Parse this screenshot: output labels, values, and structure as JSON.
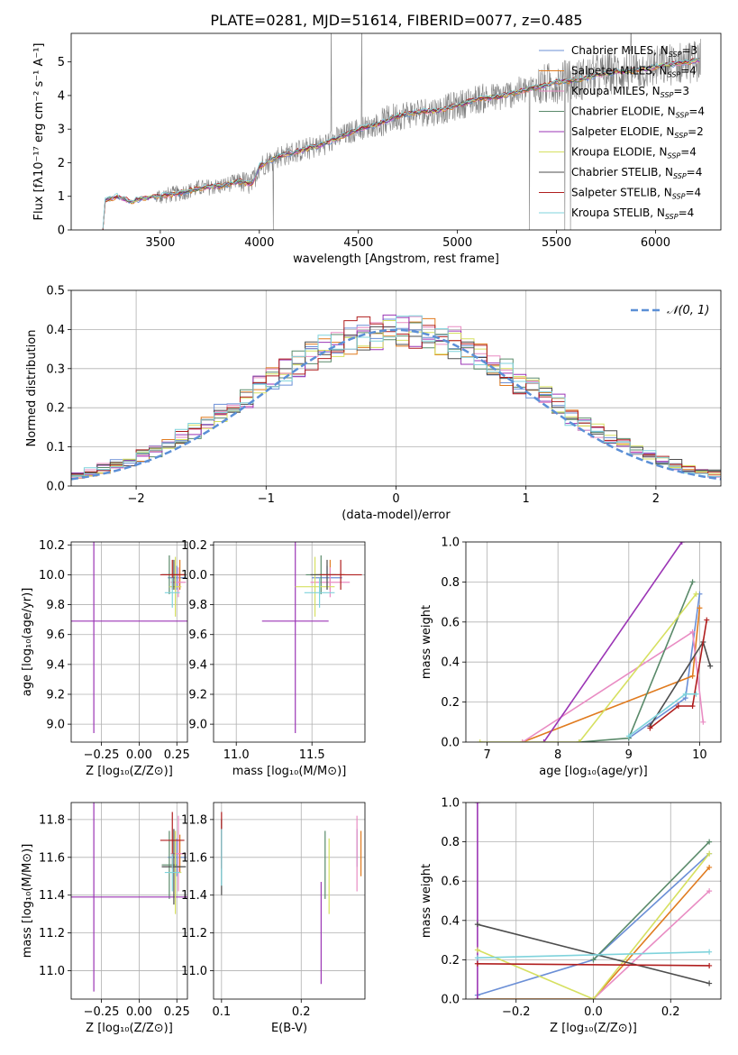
{
  "figure": {
    "title": "PLATE=0281, MJD=51614, FIBERID=0077, z=0.485"
  },
  "colors": {
    "Chabrier MILES": "#6b8fd6",
    "Salpeter MILES": "#e07b1f",
    "Kroupa MILES": "#e98cc3",
    "Chabrier ELODIE": "#5a8a6a",
    "Salpeter ELODIE": "#9b35b5",
    "Kroupa ELODIE": "#d6e060",
    "Chabrier STELIB": "#4d4d4d",
    "Salpeter STELIB": "#b01e1e",
    "Kroupa STELIB": "#7fd3dc",
    "data": "#808080",
    "normal": "#5b8fd6"
  },
  "chart_data": [
    {
      "id": "spectrum",
      "type": "line",
      "xlabel": "wavelength [Angstrom, rest frame]",
      "ylabel": "Flux [fλ10⁻¹⁷ erg cm⁻² s⁻¹ A⁻¹]",
      "xlim": [
        3050,
        6330
      ],
      "ylim": [
        0,
        5.85
      ],
      "xticks": [
        3500,
        4000,
        4500,
        5000,
        5500,
        6000
      ],
      "yticks": [
        0,
        1,
        2,
        3,
        4,
        5
      ],
      "legend": [
        {
          "label": "Chabrier MILES, N",
          "sub": "SSP",
          "suffix": "=3"
        },
        {
          "label": "Salpeter MILES, N",
          "sub": "SSP",
          "suffix": "=4"
        },
        {
          "label": "Kroupa MILES, N",
          "sub": "SSP",
          "suffix": "=3"
        },
        {
          "label": "Chabrier ELODIE, N",
          "sub": "SSP",
          "suffix": "=4"
        },
        {
          "label": "Salpeter ELODIE, N",
          "sub": "SSP",
          "suffix": "=2"
        },
        {
          "label": "Kroupa ELODIE, N",
          "sub": "SSP",
          "suffix": "=4"
        },
        {
          "label": "Chabrier STELIB, N",
          "sub": "SSP",
          "suffix": "=4"
        },
        {
          "label": "Salpeter STELIB, N",
          "sub": "SSP",
          "suffix": "=4"
        },
        {
          "label": "Kroupa STELIB, N",
          "sub": "SSP",
          "suffix": "=4"
        }
      ],
      "legend_placement": "upper-right",
      "data_range": [
        3210,
        6230
      ],
      "model_continuum": [
        [
          3210,
          0.0
        ],
        [
          3220,
          0.85
        ],
        [
          3280,
          1.0
        ],
        [
          3350,
          0.85
        ],
        [
          3420,
          0.95
        ],
        [
          3500,
          1.0
        ],
        [
          3600,
          1.1
        ],
        [
          3700,
          1.25
        ],
        [
          3800,
          1.3
        ],
        [
          3900,
          1.45
        ],
        [
          3960,
          1.35
        ],
        [
          4000,
          1.9
        ],
        [
          4100,
          2.2
        ],
        [
          4200,
          2.35
        ],
        [
          4300,
          2.5
        ],
        [
          4400,
          2.75
        ],
        [
          4500,
          3.0
        ],
        [
          4600,
          3.15
        ],
        [
          4700,
          3.4
        ],
        [
          4800,
          3.5
        ],
        [
          4900,
          3.55
        ],
        [
          5000,
          3.7
        ],
        [
          5100,
          3.9
        ],
        [
          5200,
          3.95
        ],
        [
          5300,
          4.1
        ],
        [
          5400,
          4.25
        ],
        [
          5500,
          4.4
        ],
        [
          5600,
          4.45
        ],
        [
          5700,
          4.6
        ],
        [
          5800,
          4.7
        ],
        [
          5900,
          4.75
        ],
        [
          6000,
          4.85
        ],
        [
          6100,
          4.95
        ],
        [
          6230,
          5.05
        ]
      ]
    },
    {
      "id": "residuals",
      "type": "step",
      "xlabel": "(data-model)/error",
      "ylabel": "Normed distribution",
      "xlim": [
        -2.5,
        2.5
      ],
      "ylim": [
        0,
        0.5
      ],
      "xticks": [
        -2,
        -1,
        0,
        1,
        2
      ],
      "yticks": [
        0.0,
        0.1,
        0.2,
        0.3,
        0.4,
        0.5
      ],
      "grid": true,
      "legend": "𝒩(0, 1)",
      "legend_placement": "upper-right",
      "bin_width": 0.1
    },
    {
      "id": "age-vs-Z",
      "type": "errorbar",
      "xlabel": "Z [log₁₀(Z/Z⊙)]",
      "ylabel": "age  [log₁₀(age/yr)]",
      "xlim": [
        -0.45,
        0.32
      ],
      "ylim": [
        8.88,
        10.22
      ],
      "xticks": [
        -0.25,
        0.0,
        0.25
      ],
      "yticks": [
        9.0,
        9.2,
        9.4,
        9.6,
        9.8,
        10.0,
        10.2
      ],
      "grid": true,
      "points": [
        {
          "model": "Chabrier MILES",
          "x": 0.25,
          "xerr": 0.06,
          "y": 9.98,
          "yerr": 0.08
        },
        {
          "model": "Salpeter MILES",
          "x": 0.27,
          "xerr": 0.04,
          "y": 10.0,
          "yerr": 0.1
        },
        {
          "model": "Kroupa MILES",
          "x": 0.26,
          "xerr": 0.05,
          "y": 9.95,
          "yerr": 0.1
        },
        {
          "model": "Chabrier ELODIE",
          "x": 0.2,
          "xerr": 0.05,
          "y": 10.0,
          "yerr": 0.13
        },
        {
          "model": "Salpeter ELODIE",
          "x": -0.3,
          "xerr": 0.62,
          "y": 9.69,
          "yerr": 0.75
        },
        {
          "model": "Kroupa ELODIE",
          "x": 0.24,
          "xerr": 0.04,
          "y": 9.92,
          "yerr": 0.2
        },
        {
          "model": "Chabrier STELIB",
          "x": 0.23,
          "xerr": 0.08,
          "y": 10.0,
          "yerr": 0.1
        },
        {
          "model": "Salpeter STELIB",
          "x": 0.22,
          "xerr": 0.08,
          "y": 10.0,
          "yerr": 0.1
        },
        {
          "model": "Kroupa STELIB",
          "x": 0.22,
          "xerr": 0.05,
          "y": 9.88,
          "yerr": 0.1
        }
      ]
    },
    {
      "id": "age-vs-mass",
      "type": "errorbar",
      "xlabel": "mass [log₁₀(M/M⊙)]",
      "ylabel": "",
      "xlim": [
        10.85,
        11.85
      ],
      "ylim": [
        8.88,
        10.22
      ],
      "xticks": [
        11.0,
        11.5
      ],
      "yticks": [
        9.0,
        9.2,
        9.4,
        9.6,
        9.8,
        10.0,
        10.2
      ],
      "grid": true,
      "points": [
        {
          "model": "Chabrier MILES",
          "x": 11.6,
          "xerr": 0.1,
          "y": 9.98,
          "yerr": 0.08
        },
        {
          "model": "Salpeter MILES",
          "x": 11.62,
          "xerr": 0.1,
          "y": 10.0,
          "yerr": 0.1
        },
        {
          "model": "Kroupa MILES",
          "x": 11.62,
          "xerr": 0.13,
          "y": 9.95,
          "yerr": 0.1
        },
        {
          "model": "Chabrier ELODIE",
          "x": 11.56,
          "xerr": 0.1,
          "y": 10.0,
          "yerr": 0.13
        },
        {
          "model": "Salpeter ELODIE",
          "x": 11.39,
          "xerr": 0.22,
          "y": 9.69,
          "yerr": 0.75
        },
        {
          "model": "Kroupa ELODIE",
          "x": 11.52,
          "xerr": 0.13,
          "y": 9.92,
          "yerr": 0.2
        },
        {
          "model": "Chabrier STELIB",
          "x": 11.6,
          "xerr": 0.11,
          "y": 10.0,
          "yerr": 0.1
        },
        {
          "model": "Salpeter STELIB",
          "x": 11.69,
          "xerr": 0.14,
          "y": 10.0,
          "yerr": 0.1
        },
        {
          "model": "Kroupa STELIB",
          "x": 11.55,
          "xerr": 0.1,
          "y": 9.88,
          "yerr": 0.1
        }
      ]
    },
    {
      "id": "massweight-vs-age",
      "type": "line",
      "xlabel": "age  [log₁₀(age/yr)]",
      "ylabel": "mass weight",
      "xlim": [
        6.7,
        10.3
      ],
      "ylim": [
        0,
        1.0
      ],
      "xticks": [
        7,
        8,
        9,
        10
      ],
      "yticks": [
        0.0,
        0.2,
        0.4,
        0.6,
        0.8,
        1.0
      ],
      "grid": true,
      "series": [
        {
          "model": "Chabrier MILES",
          "points": [
            [
              9.0,
              0.02
            ],
            [
              9.8,
              0.22
            ],
            [
              10.0,
              0.74
            ]
          ]
        },
        {
          "model": "Salpeter MILES",
          "points": [
            [
              7.5,
              0.0
            ],
            [
              9.9,
              0.33
            ],
            [
              10.0,
              0.67
            ]
          ]
        },
        {
          "model": "Kroupa MILES",
          "points": [
            [
              7.5,
              0.0
            ],
            [
              9.9,
              0.55
            ],
            [
              10.05,
              0.1
            ]
          ]
        },
        {
          "model": "Chabrier ELODIE",
          "points": [
            [
              8.3,
              0.0
            ],
            [
              9.0,
              0.02
            ],
            [
              9.9,
              0.8
            ]
          ]
        },
        {
          "model": "Salpeter ELODIE",
          "points": [
            [
              7.8,
              0.0
            ],
            [
              9.75,
              1.0
            ]
          ]
        },
        {
          "model": "Kroupa ELODIE",
          "points": [
            [
              6.9,
              0.0
            ],
            [
              8.3,
              0.0
            ],
            [
              9.95,
              0.74
            ]
          ]
        },
        {
          "model": "Chabrier STELIB",
          "points": [
            [
              9.3,
              0.08
            ],
            [
              10.05,
              0.5
            ],
            [
              10.15,
              0.38
            ]
          ]
        },
        {
          "model": "Salpeter STELIB",
          "points": [
            [
              9.3,
              0.07
            ],
            [
              9.7,
              0.18
            ],
            [
              9.9,
              0.18
            ],
            [
              10.1,
              0.61
            ]
          ]
        },
        {
          "model": "Kroupa STELIB",
          "points": [
            [
              9.0,
              0.03
            ],
            [
              9.8,
              0.24
            ],
            [
              9.95,
              0.24
            ]
          ]
        }
      ]
    },
    {
      "id": "mass-vs-Z",
      "type": "errorbar",
      "xlabel": "Z [log₁₀(Z/Z⊙)]",
      "ylabel": "mass [log₁₀(M/M⊙)]",
      "xlim": [
        -0.45,
        0.32
      ],
      "ylim": [
        10.85,
        11.89
      ],
      "xticks": [
        -0.25,
        0.0,
        0.25
      ],
      "yticks": [
        11.0,
        11.2,
        11.4,
        11.6,
        11.8
      ],
      "grid": true,
      "points": [
        {
          "model": "Chabrier MILES",
          "x": 0.25,
          "xerr": 0.06,
          "y": 11.6,
          "yerr": 0.1
        },
        {
          "model": "Salpeter MILES",
          "x": 0.27,
          "xerr": 0.04,
          "y": 11.62,
          "yerr": 0.1
        },
        {
          "model": "Kroupa MILES",
          "x": 0.26,
          "xerr": 0.05,
          "y": 11.62,
          "yerr": 0.2
        },
        {
          "model": "Chabrier ELODIE",
          "x": 0.2,
          "xerr": 0.05,
          "y": 11.56,
          "yerr": 0.18
        },
        {
          "model": "Salpeter ELODIE",
          "x": -0.3,
          "xerr": 0.62,
          "y": 11.39,
          "yerr": 0.5
        },
        {
          "model": "Kroupa ELODIE",
          "x": 0.24,
          "xerr": 0.04,
          "y": 11.52,
          "yerr": 0.22
        },
        {
          "model": "Chabrier STELIB",
          "x": 0.23,
          "xerr": 0.08,
          "y": 11.55,
          "yerr": 0.2
        },
        {
          "model": "Salpeter STELIB",
          "x": 0.22,
          "xerr": 0.08,
          "y": 11.69,
          "yerr": 0.15
        },
        {
          "model": "Kroupa STELIB",
          "x": 0.22,
          "xerr": 0.05,
          "y": 11.52,
          "yerr": 0.1
        }
      ]
    },
    {
      "id": "mass-vs-EBV",
      "type": "errorbar",
      "xlabel": "E(B-V)",
      "ylabel": "",
      "xlim": [
        0.09,
        0.28
      ],
      "ylim": [
        10.85,
        11.89
      ],
      "xticks": [
        0.1,
        0.2
      ],
      "yticks": [
        11.0,
        11.2,
        11.4,
        11.6,
        11.8
      ],
      "grid": true,
      "points": [
        {
          "model": "Chabrier MILES",
          "x": 0.27,
          "y": 11.65,
          "yerr": 0.1
        },
        {
          "model": "Salpeter MILES",
          "x": 0.275,
          "y": 11.62,
          "yerr": 0.12
        },
        {
          "model": "Kroupa MILES",
          "x": 0.27,
          "y": 11.62,
          "yerr": 0.2
        },
        {
          "model": "Chabrier ELODIE",
          "x": 0.23,
          "y": 11.56,
          "yerr": 0.18
        },
        {
          "model": "Salpeter ELODIE",
          "x": 0.225,
          "y": 11.2,
          "yerr": 0.27
        },
        {
          "model": "Kroupa ELODIE",
          "x": 0.235,
          "y": 11.5,
          "yerr": 0.2
        },
        {
          "model": "Chabrier STELIB",
          "x": 0.1,
          "y": 11.6,
          "yerr": 0.2
        },
        {
          "model": "Salpeter STELIB",
          "x": 0.1,
          "y": 11.69,
          "yerr": 0.15
        },
        {
          "model": "Kroupa STELIB",
          "x": 0.1,
          "y": 11.6,
          "yerr": 0.15
        }
      ]
    },
    {
      "id": "massweight-vs-Z",
      "type": "line",
      "xlabel": "Z [log₁₀(Z/Z⊙)]",
      "ylabel": "mass weight",
      "xlim": [
        -0.33,
        0.33
      ],
      "ylim": [
        0,
        1.0
      ],
      "xticks": [
        -0.2,
        0.0,
        0.2
      ],
      "yticks": [
        0.0,
        0.2,
        0.4,
        0.6,
        0.8,
        1.0
      ],
      "grid": true,
      "series": [
        {
          "model": "Chabrier MILES",
          "points": [
            [
              -0.3,
              0.02
            ],
            [
              0.0,
              0.2
            ],
            [
              0.3,
              0.74
            ]
          ]
        },
        {
          "model": "Salpeter MILES",
          "points": [
            [
              -0.3,
              0.0
            ],
            [
              0.0,
              0.0
            ],
            [
              0.3,
              0.67
            ]
          ]
        },
        {
          "model": "Kroupa MILES",
          "points": [
            [
              0.0,
              0.0
            ],
            [
              0.3,
              0.55
            ]
          ]
        },
        {
          "model": "Chabrier ELODIE",
          "points": [
            [
              0.0,
              0.2
            ],
            [
              0.3,
              0.8
            ]
          ]
        },
        {
          "model": "Salpeter ELODIE",
          "points": [
            [
              -0.3,
              0.0
            ],
            [
              -0.3,
              1.0
            ]
          ]
        },
        {
          "model": "Kroupa ELODIE",
          "points": [
            [
              -0.3,
              0.25
            ],
            [
              0.0,
              0.0
            ],
            [
              0.3,
              0.74
            ]
          ]
        },
        {
          "model": "Chabrier STELIB",
          "points": [
            [
              -0.3,
              0.38
            ],
            [
              0.3,
              0.08
            ]
          ]
        },
        {
          "model": "Salpeter STELIB",
          "points": [
            [
              -0.3,
              0.18
            ],
            [
              0.3,
              0.17
            ]
          ]
        },
        {
          "model": "Kroupa STELIB",
          "points": [
            [
              -0.3,
              0.21
            ],
            [
              0.3,
              0.24
            ]
          ]
        }
      ]
    }
  ]
}
